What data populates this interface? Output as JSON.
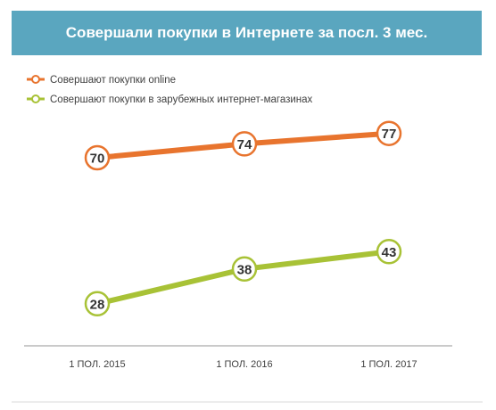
{
  "chart_data": {
    "type": "line",
    "title": "Совершали покупки в Интернете за посл. 3 мес.",
    "categories": [
      "1 ПОЛ. 2015",
      "1 ПОЛ. 2016",
      "1 ПОЛ. 2017"
    ],
    "series": [
      {
        "name": "Совершают покупки online",
        "values": [
          70,
          74,
          77
        ],
        "color": "#e8742e"
      },
      {
        "name": "Совершают покупки в зарубежных интернет-магазинах",
        "values": [
          28,
          38,
          43
        ],
        "color": "#a8c236"
      }
    ],
    "ylim": [
      0,
      100
    ],
    "grid": false,
    "legend_position": "top-left",
    "axis_color": "#b8b8b8"
  }
}
